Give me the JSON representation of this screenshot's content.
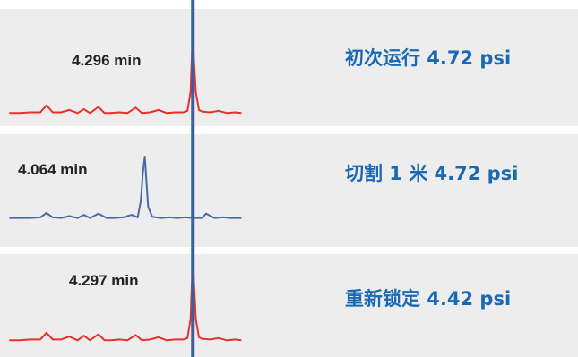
{
  "figure": {
    "label_color": "#1a69b5"
  },
  "chart_data": {
    "type": "line",
    "title": "",
    "xlabel": "",
    "ylabel": "",
    "x_unit": "min",
    "xlim": [
      3.4,
      4.55
    ],
    "reference_time": 4.296,
    "reference_line_color": "#3e5f9e",
    "panels": [
      {
        "label": "初次运行 4.72 psi",
        "peak_time": 4.296,
        "peak_label": "4.296 min",
        "color": "#e8302a",
        "x": [
          3.41,
          3.46,
          3.51,
          3.56,
          3.59,
          3.62,
          3.66,
          3.7,
          3.74,
          3.77,
          3.8,
          3.84,
          3.87,
          3.9,
          3.94,
          3.98,
          4.02,
          4.05,
          4.09,
          4.13,
          4.17,
          4.21,
          4.25,
          4.27,
          4.285,
          4.29,
          4.296,
          4.302,
          4.31,
          4.325,
          4.34,
          4.38,
          4.42,
          4.46,
          4.5,
          4.53
        ],
        "y": [
          0.02,
          0.02,
          0.03,
          0.03,
          0.12,
          0.03,
          0.03,
          0.06,
          0.02,
          0.07,
          0.02,
          0.1,
          0.02,
          0.02,
          0.03,
          0.02,
          0.09,
          0.02,
          0.03,
          0.06,
          0.02,
          0.03,
          0.03,
          0.05,
          0.3,
          0.7,
          1.0,
          0.7,
          0.3,
          0.06,
          0.04,
          0.03,
          0.05,
          0.02,
          0.03,
          0.02
        ]
      },
      {
        "label": "切割 1 米 4.72 psi",
        "peak_time": 4.064,
        "peak_label": "4.064 min",
        "color": "#4a6aa6",
        "x": [
          3.41,
          3.46,
          3.51,
          3.56,
          3.59,
          3.62,
          3.66,
          3.7,
          3.74,
          3.77,
          3.8,
          3.84,
          3.88,
          3.92,
          3.96,
          4.0,
          4.03,
          4.045,
          4.055,
          4.064,
          4.07,
          4.08,
          4.1,
          4.14,
          4.18,
          4.22,
          4.26,
          4.3,
          4.34,
          4.36,
          4.4,
          4.44,
          4.48,
          4.52,
          4.53
        ],
        "y": [
          0.02,
          0.02,
          0.02,
          0.03,
          0.1,
          0.03,
          0.02,
          0.05,
          0.02,
          0.07,
          0.02,
          0.09,
          0.02,
          0.02,
          0.03,
          0.07,
          0.03,
          0.3,
          0.75,
          1.0,
          0.7,
          0.2,
          0.04,
          0.02,
          0.03,
          0.02,
          0.03,
          0.02,
          0.02,
          0.09,
          0.02,
          0.03,
          0.02,
          0.02,
          0.02
        ]
      },
      {
        "label": "重新锁定 4.42 psi",
        "peak_time": 4.297,
        "peak_label": "4.297 min",
        "color": "#e8302a",
        "x": [
          3.41,
          3.46,
          3.51,
          3.56,
          3.59,
          3.62,
          3.66,
          3.7,
          3.74,
          3.77,
          3.8,
          3.84,
          3.87,
          3.9,
          3.94,
          3.98,
          4.02,
          4.05,
          4.09,
          4.13,
          4.17,
          4.21,
          4.25,
          4.27,
          4.285,
          4.29,
          4.297,
          4.303,
          4.31,
          4.325,
          4.34,
          4.38,
          4.42,
          4.46,
          4.5,
          4.53
        ],
        "y": [
          0.02,
          0.02,
          0.03,
          0.03,
          0.12,
          0.03,
          0.03,
          0.07,
          0.02,
          0.08,
          0.02,
          0.1,
          0.02,
          0.02,
          0.03,
          0.02,
          0.09,
          0.02,
          0.03,
          0.06,
          0.02,
          0.03,
          0.03,
          0.05,
          0.3,
          0.7,
          1.0,
          0.7,
          0.3,
          0.06,
          0.04,
          0.03,
          0.05,
          0.02,
          0.03,
          0.02
        ]
      }
    ]
  }
}
